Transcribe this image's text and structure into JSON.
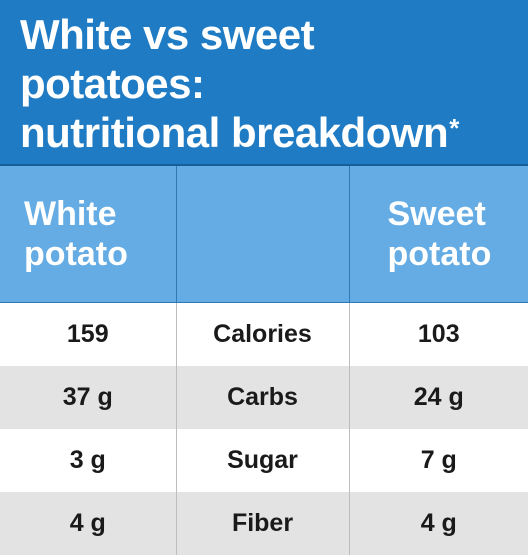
{
  "title": {
    "line1": "White vs sweet",
    "line2": "potatoes:",
    "line3": "nutritional breakdown",
    "footnote_mark": "*"
  },
  "header": {
    "left_line1": "White",
    "left_line2": "potato",
    "middle": "",
    "right_line1": "Sweet",
    "right_line2": "potato"
  },
  "rows": [
    {
      "white": "159",
      "label": "Calories",
      "sweet": "103"
    },
    {
      "white": "37 g",
      "label": "Carbs",
      "sweet": "24 g"
    },
    {
      "white": "3 g",
      "label": "Sugar",
      "sweet": "7 g"
    },
    {
      "white": "4 g",
      "label": "Fiber",
      "sweet": "4 g"
    }
  ],
  "colors": {
    "title_bg": "#1f7cc4",
    "header_bg": "#64ace3",
    "row_alt_bg": "#e3e3e3"
  }
}
